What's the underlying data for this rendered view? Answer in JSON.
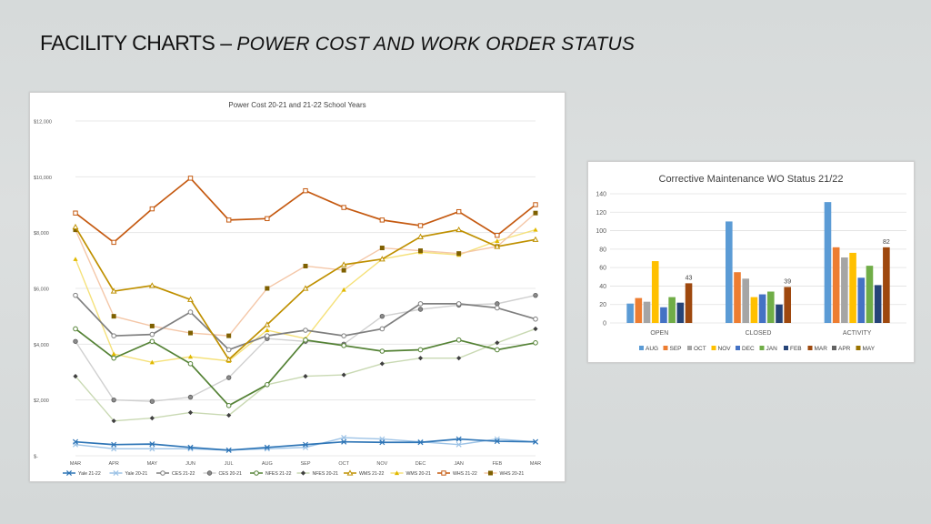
{
  "slide": {
    "title_main": "FACILITY CHARTS –",
    "title_sub": "POWER COST AND WORK ORDER STATUS"
  },
  "chart_data": [
    {
      "type": "line",
      "title": "Power Cost 20-21 and 21-22 School Years",
      "xlabel": "",
      "ylabel": "",
      "categories": [
        "MAR",
        "APR",
        "MAY",
        "JUN",
        "JUL",
        "AUG",
        "SEP",
        "OCT",
        "NOV",
        "DEC",
        "JAN",
        "FEB",
        "MAR"
      ],
      "ylim": [
        0,
        12000
      ],
      "yticks": [
        0,
        2000,
        4000,
        6000,
        8000,
        10000,
        12000
      ],
      "ytick_labels": [
        "$-",
        "$2,000",
        "$4,000",
        "$6,000",
        "$8,000",
        "$10,000",
        "$12,000"
      ],
      "grid": true,
      "legend": "bottom",
      "series": [
        {
          "name": "Yale 21-22",
          "color": "#2e75b6",
          "marker": "x",
          "values": [
            500,
            400,
            420,
            300,
            200,
            300,
            400,
            500,
            480,
            480,
            600,
            520,
            500
          ]
        },
        {
          "name": "Yale 20-21",
          "color": "#9dc3e6",
          "marker": "x",
          "values": [
            400,
            250,
            250,
            250,
            200,
            250,
            300,
            650,
            600,
            500,
            400,
            600,
            500
          ]
        },
        {
          "name": "CES 21-22",
          "color": "#7f7f7f",
          "marker": "circle-open",
          "values": [
            5750,
            4300,
            4350,
            5150,
            3800,
            4300,
            4500,
            4300,
            4550,
            5450,
            5450,
            5300,
            4900
          ]
        },
        {
          "name": "CES 20-21",
          "color": "#d0d0d0",
          "marker": "circle-filled",
          "values": [
            4100,
            2000,
            1950,
            2100,
            2800,
            4200,
            4100,
            4000,
            5000,
            5250,
            5400,
            5450,
            5750
          ]
        },
        {
          "name": "NFES 21-22",
          "color": "#548235",
          "marker": "circle-open",
          "values": [
            4550,
            3500,
            4100,
            3300,
            1800,
            2550,
            4150,
            3950,
            3750,
            3800,
            4150,
            3800,
            4050
          ]
        },
        {
          "name": "NFES 20-21",
          "color": "#c9d9b3",
          "marker": "diamond",
          "values": [
            2850,
            1250,
            1350,
            1550,
            1450,
            2550,
            2850,
            2900,
            3300,
            3500,
            3500,
            4050,
            4550
          ]
        },
        {
          "name": "WMS 21-22",
          "color": "#bf9000",
          "marker": "triangle-open",
          "values": [
            8200,
            5900,
            6100,
            5600,
            3450,
            4700,
            6000,
            6850,
            7050,
            7850,
            8100,
            7500,
            7750
          ]
        },
        {
          "name": "WMS 20-21",
          "color": "#f5e17a",
          "marker": "triangle-filled",
          "values": [
            7050,
            3650,
            3350,
            3550,
            3400,
            4500,
            4200,
            5950,
            7050,
            7300,
            7200,
            7700,
            8100
          ]
        },
        {
          "name": "WHS 21-22",
          "color": "#c55a11",
          "marker": "square-open",
          "values": [
            8700,
            7650,
            8850,
            9950,
            8450,
            8500,
            9500,
            8900,
            8450,
            8250,
            8750,
            7900,
            9000
          ]
        },
        {
          "name": "WHS 20-21",
          "color": "#f4c7a8",
          "marker": "square-filled",
          "values": [
            8100,
            5000,
            4650,
            4400,
            4300,
            6000,
            6800,
            6650,
            7450,
            7350,
            7250,
            7500,
            8700
          ]
        }
      ]
    },
    {
      "type": "bar",
      "title": "Corrective Maintenance WO Status 21/22",
      "xlabel": "",
      "ylabel": "",
      "categories": [
        "OPEN",
        "CLOSED",
        "ACTIVITY"
      ],
      "ylim": [
        0,
        140
      ],
      "yticks": [
        0,
        20,
        40,
        60,
        80,
        100,
        120,
        140
      ],
      "ytick_labels": [
        "0",
        "20",
        "40",
        "60",
        "80",
        "100",
        "120",
        "140"
      ],
      "grid": true,
      "legend": "bottom",
      "series": [
        {
          "name": "AUG",
          "color": "#5b9bd5",
          "values": [
            21,
            110,
            131
          ]
        },
        {
          "name": "SEP",
          "color": "#ed7d31",
          "values": [
            27,
            55,
            82
          ]
        },
        {
          "name": "OCT",
          "color": "#a5a5a5",
          "values": [
            23,
            48,
            71
          ]
        },
        {
          "name": "NOV",
          "color": "#ffc000",
          "values": [
            67,
            28,
            76
          ]
        },
        {
          "name": "DEC",
          "color": "#4472c4",
          "values": [
            17,
            31,
            49
          ]
        },
        {
          "name": "JAN",
          "color": "#70ad47",
          "values": [
            28,
            34,
            62
          ]
        },
        {
          "name": "FEB",
          "color": "#264478",
          "values": [
            22,
            20,
            41
          ]
        },
        {
          "name": "MAR",
          "color": "#9e480e",
          "values": [
            43,
            39,
            82
          ]
        },
        {
          "name": "APR",
          "color": "#636363",
          "values": [
            null,
            null,
            null
          ]
        },
        {
          "name": "MAY",
          "color": "#997300",
          "values": [
            null,
            null,
            null
          ]
        }
      ],
      "data_labels": [
        {
          "category": "OPEN",
          "series": "MAR",
          "text": "43"
        },
        {
          "category": "CLOSED",
          "series": "MAR",
          "text": "39"
        },
        {
          "category": "ACTIVITY",
          "series": "MAR",
          "text": "82"
        }
      ]
    }
  ]
}
